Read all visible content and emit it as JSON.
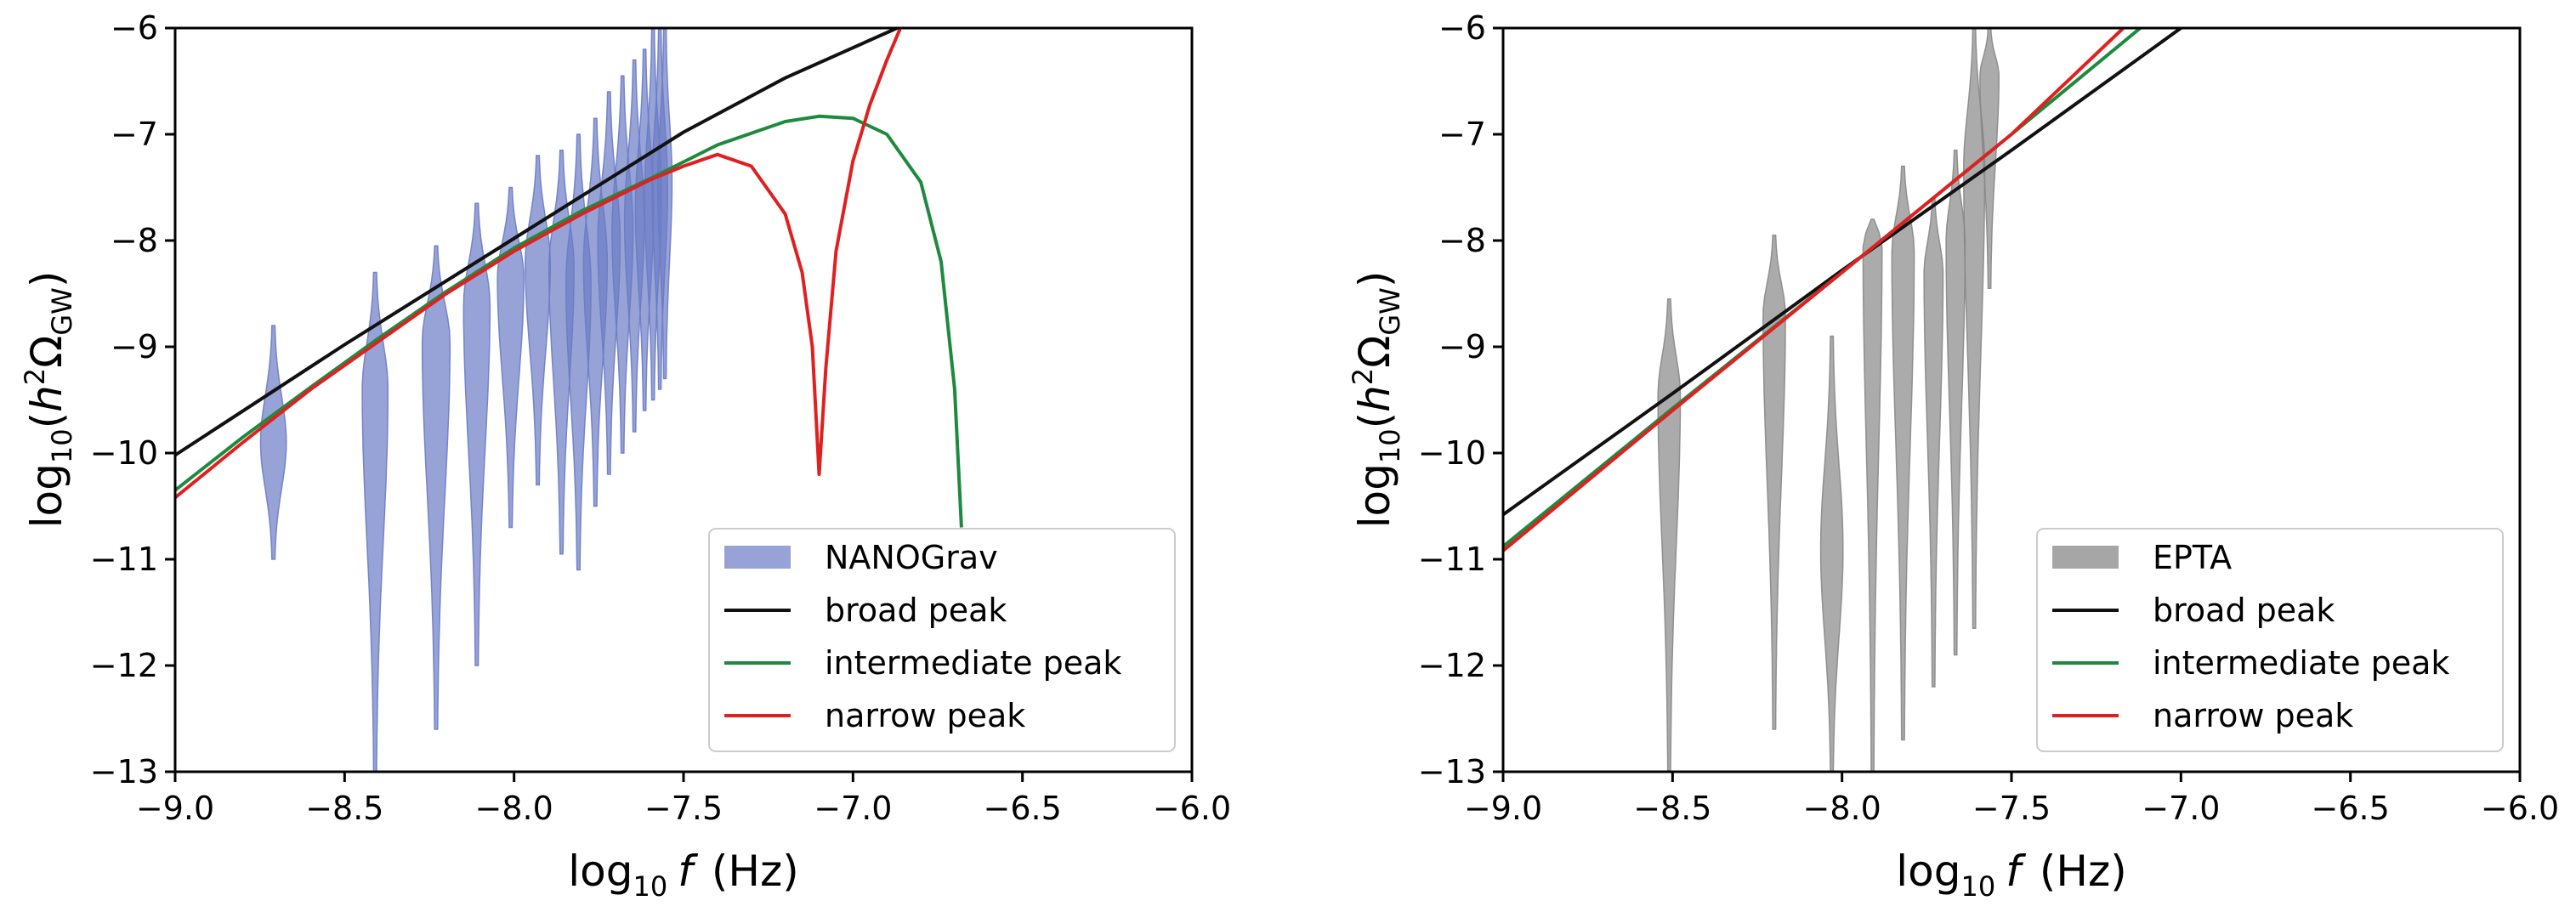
{
  "chart_data": [
    {
      "type": "violin+line",
      "panel": "left",
      "xlabel_prefix": "log",
      "xlabel_sub": "10",
      "xlabel_var": "f",
      "xlabel_unit": "(Hz)",
      "ylabel_prefix": "log",
      "ylabel_sub": "10",
      "ylabel_open": "(",
      "ylabel_h": "h",
      "ylabel_sup": "2",
      "ylabel_omega": "Ω",
      "ylabel_omega_sub": "GW",
      "ylabel_close": ")",
      "xlim": [
        -9.0,
        -6.0
      ],
      "ylim": [
        -13,
        -6
      ],
      "xticks": [
        -9.0,
        -8.5,
        -8.0,
        -7.5,
        -7.0,
        -6.5,
        -6.0
      ],
      "xtick_labels": [
        "−9.0",
        "−8.5",
        "−8.0",
        "−7.5",
        "−7.0",
        "−6.5",
        "−6.0"
      ],
      "yticks": [
        -13,
        -12,
        -11,
        -10,
        -9,
        -8,
        -7,
        -6
      ],
      "ytick_labels": [
        "−13",
        "−12",
        "−11",
        "−10",
        "−9",
        "−8",
        "−7",
        "−6"
      ],
      "legend_position": "bottom-right",
      "violin_name": "NANOGrav",
      "violin_color": "#6b7cc4",
      "violins": [
        {
          "x": -8.71,
          "ymin": -11.0,
          "ymax": -8.8,
          "center": -9.9,
          "width": 0.035
        },
        {
          "x": -8.41,
          "ymin": -13.0,
          "ymax": -8.3,
          "center": -9.4,
          "width": 0.035
        },
        {
          "x": -8.23,
          "ymin": -12.6,
          "ymax": -8.05,
          "center": -8.95,
          "width": 0.038
        },
        {
          "x": -8.11,
          "ymin": -12.0,
          "ymax": -7.65,
          "center": -8.6,
          "width": 0.036
        },
        {
          "x": -8.01,
          "ymin": -10.7,
          "ymax": -7.5,
          "center": -8.35,
          "width": 0.036
        },
        {
          "x": -7.93,
          "ymin": -10.3,
          "ymax": -7.2,
          "center": -8.2,
          "width": 0.034
        },
        {
          "x": -7.86,
          "ymin": -10.95,
          "ymax": -7.15,
          "center": -8.25,
          "width": 0.034
        },
        {
          "x": -7.81,
          "ymin": -11.1,
          "ymax": -7.0,
          "center": -8.4,
          "width": 0.034
        },
        {
          "x": -7.76,
          "ymin": -10.5,
          "ymax": -6.85,
          "center": -8.2,
          "width": 0.032
        },
        {
          "x": -7.72,
          "ymin": -10.2,
          "ymax": -6.6,
          "center": -8.0,
          "width": 0.03
        },
        {
          "x": -7.68,
          "ymin": -10.0,
          "ymax": -6.45,
          "center": -7.9,
          "width": 0.028
        },
        {
          "x": -7.645,
          "ymin": -9.8,
          "ymax": -6.3,
          "center": -7.8,
          "width": 0.026
        },
        {
          "x": -7.615,
          "ymin": -9.6,
          "ymax": -6.2,
          "center": -7.7,
          "width": 0.024
        },
        {
          "x": -7.59,
          "ymin": -9.5,
          "ymax": -6.0,
          "center": -7.6,
          "width": 0.022
        },
        {
          "x": -7.57,
          "ymin": -9.4,
          "ymax": -6.0,
          "center": -7.5,
          "width": 0.02
        },
        {
          "x": -7.555,
          "ymin": -9.3,
          "ymax": -6.0,
          "center": -7.45,
          "width": 0.018
        }
      ],
      "series": [
        {
          "name": "broad peak",
          "color": "#111111",
          "x": [
            -9.0,
            -8.5,
            -8.0,
            -7.5,
            -7.2,
            -6.87
          ],
          "y": [
            -10.02,
            -8.98,
            -7.98,
            -6.98,
            -6.47,
            -6.0
          ]
        },
        {
          "name": "intermediate peak",
          "color": "#1e8a3e",
          "x": [
            -9.0,
            -8.8,
            -8.6,
            -8.4,
            -8.2,
            -8.0,
            -7.8,
            -7.6,
            -7.4,
            -7.2,
            -7.1,
            -7.0,
            -6.9,
            -6.8,
            -6.74,
            -6.7,
            -6.68
          ],
          "y": [
            -10.35,
            -9.85,
            -9.38,
            -8.92,
            -8.48,
            -8.07,
            -7.72,
            -7.42,
            -7.1,
            -6.88,
            -6.83,
            -6.85,
            -7.0,
            -7.45,
            -8.2,
            -9.4,
            -10.7
          ]
        },
        {
          "name": "narrow peak",
          "color": "#e02020",
          "x": [
            -9.0,
            -8.8,
            -8.6,
            -8.4,
            -8.2,
            -8.0,
            -7.8,
            -7.6,
            -7.5,
            -7.4,
            -7.3,
            -7.2,
            -7.15,
            -7.12,
            -7.1,
            -7.08,
            -7.05,
            -7.0,
            -6.95,
            -6.9,
            -6.86
          ],
          "y": [
            -10.42,
            -9.9,
            -9.4,
            -8.95,
            -8.5,
            -8.1,
            -7.75,
            -7.43,
            -7.3,
            -7.19,
            -7.3,
            -7.75,
            -8.3,
            -9.0,
            -10.2,
            -9.2,
            -8.1,
            -7.25,
            -6.72,
            -6.3,
            -6.0
          ]
        }
      ]
    },
    {
      "type": "violin+line",
      "panel": "right",
      "xlabel_prefix": "log",
      "xlabel_sub": "10",
      "xlabel_var": "f",
      "xlabel_unit": "(Hz)",
      "ylabel_prefix": "log",
      "ylabel_sub": "10",
      "ylabel_open": "(",
      "ylabel_h": "h",
      "ylabel_sup": "2",
      "ylabel_omega": "Ω",
      "ylabel_omega_sub": "GW",
      "ylabel_close": ")",
      "xlim": [
        -9.0,
        -6.0
      ],
      "ylim": [
        -13,
        -6
      ],
      "xticks": [
        -9.0,
        -8.5,
        -8.0,
        -7.5,
        -7.0,
        -6.5,
        -6.0
      ],
      "xtick_labels": [
        "−9.0",
        "−8.5",
        "−8.0",
        "−7.5",
        "−7.0",
        "−6.5",
        "−6.0"
      ],
      "yticks": [
        -13,
        -12,
        -11,
        -10,
        -9,
        -8,
        -7,
        -6
      ],
      "ytick_labels": [
        "−13",
        "−12",
        "−11",
        "−10",
        "−9",
        "−8",
        "−7",
        "−6"
      ],
      "legend_position": "bottom-right",
      "violin_name": "EPTA",
      "violin_color": "#888888",
      "violins": [
        {
          "x": -8.51,
          "ymin": -13.0,
          "ymax": -8.55,
          "center": -9.45,
          "width": 0.03
        },
        {
          "x": -8.2,
          "ymin": -12.6,
          "ymax": -7.95,
          "center": -8.7,
          "width": 0.03
        },
        {
          "x": -8.03,
          "ymin": -13.0,
          "ymax": -8.9,
          "center": -10.9,
          "width": 0.03
        },
        {
          "x": -7.91,
          "ymin": -13.0,
          "ymax": -7.8,
          "center": -8.0,
          "width": 0.025
        },
        {
          "x": -7.82,
          "ymin": -12.7,
          "ymax": -7.3,
          "center": -8.1,
          "width": 0.03
        },
        {
          "x": -7.73,
          "ymin": -12.2,
          "ymax": -7.6,
          "center": -8.3,
          "width": 0.025
        },
        {
          "x": -7.665,
          "ymin": -11.9,
          "ymax": -7.15,
          "center": -8.0,
          "width": 0.025
        },
        {
          "x": -7.61,
          "ymin": -11.65,
          "ymax": -6.0,
          "center": -7.3,
          "width": 0.028
        },
        {
          "x": -7.565,
          "ymin": -8.45,
          "ymax": -6.0,
          "center": -6.45,
          "width": 0.025
        }
      ],
      "series": [
        {
          "name": "broad peak",
          "color": "#111111",
          "x": [
            -9.0,
            -8.5,
            -8.0,
            -7.5,
            -7.0
          ],
          "y": [
            -10.58,
            -9.44,
            -8.28,
            -7.15,
            -6.0
          ]
        },
        {
          "name": "intermediate peak",
          "color": "#1e8a3e",
          "x": [
            -9.0,
            -8.5,
            -8.0,
            -7.5,
            -7.12
          ],
          "y": [
            -10.88,
            -9.58,
            -8.3,
            -7.0,
            -6.0
          ]
        },
        {
          "name": "narrow peak",
          "color": "#e02020",
          "x": [
            -9.0,
            -8.5,
            -8.0,
            -7.5,
            -7.17
          ],
          "y": [
            -10.92,
            -9.6,
            -8.3,
            -7.0,
            -6.0
          ]
        }
      ]
    }
  ]
}
